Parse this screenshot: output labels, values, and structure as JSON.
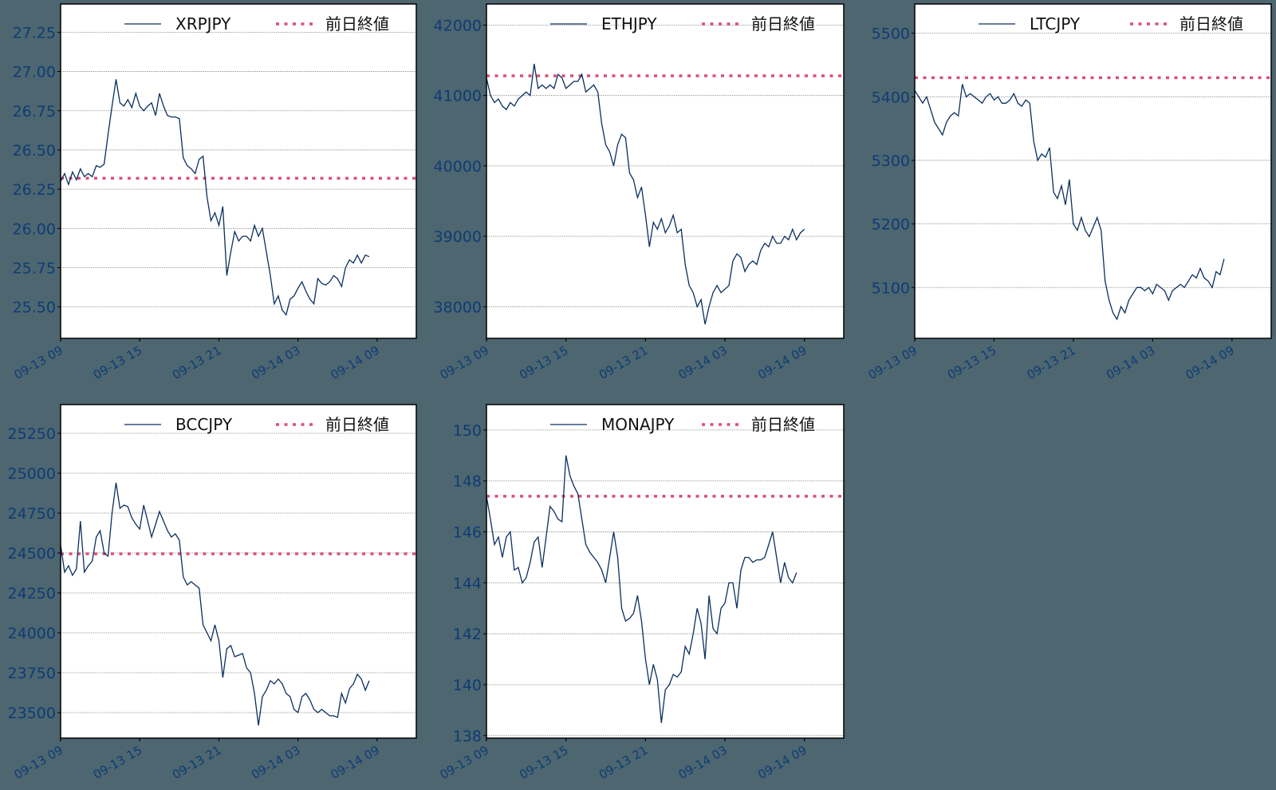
{
  "figure": {
    "background": "#4d6670",
    "tick_color": "#0e3c75",
    "series_color": "#0a2f5e",
    "prev_close_color": "#d8507a",
    "prev_close_label": "前日終値",
    "x_tick_labels": [
      "09-13 09",
      "09-13 15",
      "09-13 21",
      "09-14 03",
      "09-14 09"
    ],
    "x_tick_hours": [
      0,
      6,
      12,
      18,
      24
    ]
  },
  "chart_data": [
    {
      "type": "line",
      "title": "",
      "series_name": "XRPJPY",
      "xlabel": "",
      "ylabel": "",
      "ylim": [
        25.3,
        27.43
      ],
      "yticks": [
        25.5,
        25.75,
        26.0,
        26.25,
        26.5,
        26.75,
        27.0,
        27.25
      ],
      "ytick_labels": [
        "25.50",
        "25.75",
        "26.00",
        "26.25",
        "26.50",
        "26.75",
        "27.00",
        "27.25"
      ],
      "prev_close": 26.32,
      "legend": [
        "XRPJPY",
        "前日終値"
      ],
      "grid": "horizontal dotted",
      "x_hours": [
        0,
        0.3,
        0.6,
        0.9,
        1.2,
        1.5,
        1.8,
        2.1,
        2.4,
        2.7,
        3.0,
        3.3,
        3.6,
        3.9,
        4.2,
        4.5,
        4.8,
        5.1,
        5.4,
        5.7,
        6.0,
        6.3,
        6.6,
        6.9,
        7.2,
        7.5,
        7.8,
        8.1,
        8.4,
        8.7,
        9.0,
        9.3,
        9.6,
        9.9,
        10.2,
        10.5,
        10.8,
        11.1,
        11.4,
        11.7,
        12.0,
        12.3,
        12.6,
        12.9,
        13.2,
        13.5,
        13.8,
        14.1,
        14.4,
        14.7,
        15.0,
        15.3,
        15.6,
        15.9,
        16.2,
        16.5,
        16.8,
        17.1,
        17.4,
        17.7,
        18.0,
        18.3,
        18.6,
        18.9,
        19.2,
        19.5,
        19.8,
        20.1,
        20.4,
        20.7,
        21.0,
        21.3,
        21.6,
        21.9,
        22.2,
        22.5,
        22.8,
        23.1,
        23.4
      ],
      "values": [
        26.3,
        26.35,
        26.28,
        26.36,
        26.31,
        26.38,
        26.33,
        26.35,
        26.33,
        26.4,
        26.39,
        26.41,
        26.6,
        26.78,
        26.95,
        26.8,
        26.78,
        26.82,
        26.77,
        26.86,
        26.78,
        26.75,
        26.78,
        26.8,
        26.72,
        26.86,
        26.78,
        26.72,
        26.71,
        26.71,
        26.7,
        26.45,
        26.4,
        26.38,
        26.35,
        26.44,
        26.46,
        26.2,
        26.05,
        26.1,
        26.02,
        26.14,
        25.7,
        25.85,
        25.98,
        25.92,
        25.95,
        25.95,
        25.92,
        26.02,
        25.95,
        26.0,
        25.85,
        25.7,
        25.52,
        25.57,
        25.48,
        25.45,
        25.55,
        25.57,
        25.62,
        25.66,
        25.6,
        25.55,
        25.52,
        25.68,
        25.65,
        25.64,
        25.66,
        25.7,
        25.68,
        25.63,
        25.75,
        25.8,
        25.78,
        25.83,
        25.78,
        25.83,
        25.82
      ]
    },
    {
      "type": "line",
      "title": "",
      "series_name": "ETHJPY",
      "xlabel": "",
      "ylabel": "",
      "ylim": [
        37550,
        42300
      ],
      "yticks": [
        38000,
        39000,
        40000,
        41000,
        42000
      ],
      "ytick_labels": [
        "38000",
        "39000",
        "40000",
        "41000",
        "42000"
      ],
      "prev_close": 41280,
      "legend": [
        "ETHJPY",
        "前日終値"
      ],
      "grid": "horizontal dotted",
      "x_hours": [
        0,
        0.3,
        0.6,
        0.9,
        1.2,
        1.5,
        1.8,
        2.1,
        2.4,
        2.7,
        3.0,
        3.3,
        3.6,
        3.9,
        4.2,
        4.5,
        4.8,
        5.1,
        5.4,
        5.7,
        6.0,
        6.3,
        6.6,
        6.9,
        7.2,
        7.5,
        7.8,
        8.1,
        8.4,
        8.7,
        9.0,
        9.3,
        9.6,
        9.9,
        10.2,
        10.5,
        10.8,
        11.1,
        11.4,
        11.7,
        12.0,
        12.3,
        12.6,
        12.9,
        13.2,
        13.5,
        13.8,
        14.1,
        14.4,
        14.7,
        15.0,
        15.3,
        15.6,
        15.9,
        16.2,
        16.5,
        16.8,
        17.1,
        17.4,
        17.7,
        18.0,
        18.3,
        18.6,
        18.9,
        19.2,
        19.5,
        19.8,
        20.1,
        20.4,
        20.7,
        21.0,
        21.3,
        21.6,
        21.9,
        22.2,
        22.5,
        22.8,
        23.1,
        23.4,
        23.7,
        24.0
      ],
      "values": [
        41250,
        41000,
        40900,
        40950,
        40850,
        40800,
        40900,
        40850,
        40950,
        41000,
        41050,
        41000,
        41450,
        41100,
        41150,
        41100,
        41150,
        41100,
        41300,
        41250,
        41100,
        41150,
        41200,
        41200,
        41300,
        41050,
        41100,
        41150,
        41050,
        40600,
        40300,
        40200,
        40000,
        40300,
        40450,
        40400,
        39900,
        39800,
        39550,
        39700,
        39300,
        38850,
        39200,
        39100,
        39250,
        39050,
        39150,
        39300,
        39050,
        39100,
        38600,
        38300,
        38200,
        38000,
        38100,
        37750,
        38000,
        38200,
        38300,
        38200,
        38250,
        38300,
        38650,
        38750,
        38700,
        38500,
        38600,
        38650,
        38600,
        38800,
        38900,
        38850,
        39000,
        38900,
        38900,
        39000,
        38950,
        39100,
        38950,
        39050,
        39100
      ]
    },
    {
      "type": "line",
      "title": "",
      "series_name": "LTCJPY",
      "xlabel": "",
      "ylabel": "",
      "ylim": [
        5020,
        5546
      ],
      "yticks": [
        5100,
        5200,
        5300,
        5400,
        5500
      ],
      "ytick_labels": [
        "5100",
        "5200",
        "5300",
        "5400",
        "5500"
      ],
      "prev_close": 5430,
      "legend": [
        "LTCJPY",
        "前日終値"
      ],
      "grid": "horizontal dotted",
      "x_hours": [
        0,
        0.3,
        0.6,
        0.9,
        1.2,
        1.5,
        1.8,
        2.1,
        2.4,
        2.7,
        3.0,
        3.3,
        3.6,
        3.9,
        4.2,
        4.5,
        4.8,
        5.1,
        5.4,
        5.7,
        6.0,
        6.3,
        6.6,
        6.9,
        7.2,
        7.5,
        7.8,
        8.1,
        8.4,
        8.7,
        9.0,
        9.3,
        9.6,
        9.9,
        10.2,
        10.5,
        10.8,
        11.1,
        11.4,
        11.7,
        12.0,
        12.3,
        12.6,
        12.9,
        13.2,
        13.5,
        13.8,
        14.1,
        14.4,
        14.7,
        15.0,
        15.3,
        15.6,
        15.9,
        16.2,
        16.5,
        16.8,
        17.1,
        17.4,
        17.7,
        18.0,
        18.3,
        18.6,
        18.9,
        19.2,
        19.5,
        19.8,
        20.1,
        20.4,
        20.7,
        21.0,
        21.3,
        21.6,
        21.9,
        22.2,
        22.5,
        22.8,
        23.1,
        23.4
      ],
      "values": [
        5410,
        5400,
        5390,
        5400,
        5380,
        5360,
        5350,
        5340,
        5360,
        5370,
        5375,
        5370,
        5420,
        5400,
        5405,
        5400,
        5395,
        5390,
        5400,
        5405,
        5395,
        5400,
        5390,
        5390,
        5395,
        5405,
        5390,
        5385,
        5395,
        5390,
        5330,
        5300,
        5310,
        5305,
        5320,
        5250,
        5240,
        5260,
        5230,
        5270,
        5200,
        5190,
        5210,
        5190,
        5180,
        5195,
        5210,
        5190,
        5110,
        5080,
        5060,
        5050,
        5070,
        5060,
        5080,
        5090,
        5100,
        5100,
        5095,
        5100,
        5090,
        5105,
        5100,
        5095,
        5080,
        5095,
        5100,
        5105,
        5100,
        5110,
        5120,
        5115,
        5130,
        5115,
        5110,
        5100,
        5125,
        5120,
        5145
      ]
    },
    {
      "type": "line",
      "title": "",
      "series_name": "BCCJPY",
      "xlabel": "",
      "ylabel": "",
      "ylim": [
        23340,
        25430
      ],
      "yticks": [
        23500,
        23750,
        24000,
        24250,
        24500,
        24750,
        25000,
        25250
      ],
      "ytick_labels": [
        "23500",
        "23750",
        "24000",
        "24250",
        "24500",
        "24750",
        "25000",
        "25250"
      ],
      "prev_close": 24495,
      "legend": [
        "BCCJPY",
        "前日終値"
      ],
      "grid": "horizontal dotted",
      "x_hours": [
        0,
        0.3,
        0.6,
        0.9,
        1.2,
        1.5,
        1.8,
        2.1,
        2.4,
        2.7,
        3.0,
        3.3,
        3.6,
        3.9,
        4.2,
        4.5,
        4.8,
        5.1,
        5.4,
        5.7,
        6.0,
        6.3,
        6.6,
        6.9,
        7.2,
        7.5,
        7.8,
        8.1,
        8.4,
        8.7,
        9.0,
        9.3,
        9.6,
        9.9,
        10.2,
        10.5,
        10.8,
        11.1,
        11.4,
        11.7,
        12.0,
        12.3,
        12.6,
        12.9,
        13.2,
        13.5,
        13.8,
        14.1,
        14.4,
        14.7,
        15.0,
        15.3,
        15.6,
        15.9,
        16.2,
        16.5,
        16.8,
        17.1,
        17.4,
        17.7,
        18.0,
        18.3,
        18.6,
        18.9,
        19.2,
        19.5,
        19.8,
        20.1,
        20.4,
        20.7,
        21.0,
        21.3,
        21.6,
        21.9,
        22.2,
        22.5,
        22.8,
        23.1,
        23.4
      ],
      "values": [
        24550,
        24380,
        24420,
        24360,
        24400,
        24700,
        24380,
        24420,
        24450,
        24600,
        24640,
        24500,
        24480,
        24750,
        24940,
        24780,
        24800,
        24790,
        24720,
        24680,
        24650,
        24800,
        24700,
        24600,
        24680,
        24760,
        24700,
        24640,
        24600,
        24620,
        24580,
        24350,
        24300,
        24320,
        24300,
        24280,
        24050,
        24000,
        23950,
        24050,
        23950,
        23720,
        23900,
        23920,
        23850,
        23860,
        23870,
        23780,
        23750,
        23620,
        23420,
        23600,
        23640,
        23700,
        23680,
        23710,
        23680,
        23620,
        23600,
        23520,
        23500,
        23600,
        23620,
        23580,
        23520,
        23500,
        23520,
        23500,
        23480,
        23480,
        23470,
        23620,
        23560,
        23650,
        23680,
        23740,
        23710,
        23640,
        23700
      ]
    },
    {
      "type": "line",
      "title": "",
      "series_name": "MONAJPY",
      "xlabel": "",
      "ylabel": "",
      "ylim": [
        137.9,
        151.0
      ],
      "yticks": [
        138,
        140,
        142,
        144,
        146,
        148,
        150
      ],
      "ytick_labels": [
        "138",
        "140",
        "142",
        "144",
        "146",
        "148",
        "150"
      ],
      "prev_close": 147.4,
      "legend": [
        "MONAJPY",
        "前日終値"
      ],
      "grid": "horizontal dotted",
      "x_hours": [
        0,
        0.3,
        0.6,
        0.9,
        1.2,
        1.5,
        1.8,
        2.1,
        2.4,
        2.7,
        3.0,
        3.3,
        3.6,
        3.9,
        4.2,
        4.5,
        4.8,
        5.1,
        5.4,
        5.7,
        6.0,
        6.3,
        6.6,
        6.9,
        7.2,
        7.5,
        7.8,
        8.1,
        8.4,
        8.7,
        9.0,
        9.3,
        9.6,
        9.9,
        10.2,
        10.5,
        10.8,
        11.1,
        11.4,
        11.7,
        12.0,
        12.3,
        12.6,
        12.9,
        13.2,
        13.5,
        13.8,
        14.1,
        14.4,
        14.7,
        15.0,
        15.3,
        15.6,
        15.9,
        16.2,
        16.5,
        16.8,
        17.1,
        17.4,
        17.7,
        18.0,
        18.3,
        18.6,
        18.9,
        19.2,
        19.5,
        19.8,
        20.1,
        20.4,
        20.7,
        21.0,
        21.3,
        21.6,
        21.9,
        22.2,
        22.5,
        22.8,
        23.1,
        23.4
      ],
      "values": [
        147.4,
        146.5,
        145.5,
        145.8,
        145.0,
        145.8,
        146.0,
        144.5,
        144.6,
        144.0,
        144.2,
        144.8,
        145.6,
        145.8,
        144.6,
        145.8,
        147.0,
        146.8,
        146.5,
        146.4,
        149.0,
        148.2,
        147.8,
        147.5,
        146.5,
        145.5,
        145.2,
        145.0,
        144.8,
        144.5,
        144.0,
        145.0,
        146.0,
        145.0,
        143.0,
        142.5,
        142.6,
        142.8,
        143.5,
        142.5,
        141.0,
        140.0,
        140.8,
        140.2,
        138.5,
        139.8,
        140.0,
        140.4,
        140.3,
        140.5,
        141.5,
        141.2,
        142.0,
        143.0,
        142.4,
        141.0,
        143.5,
        142.2,
        142.0,
        143.0,
        143.2,
        144.0,
        144.0,
        143.0,
        144.5,
        145.0,
        145.0,
        144.8,
        144.9,
        144.9,
        145.0,
        145.5,
        146.0,
        145.0,
        144.0,
        144.8,
        144.2,
        144.0,
        144.4
      ]
    }
  ]
}
